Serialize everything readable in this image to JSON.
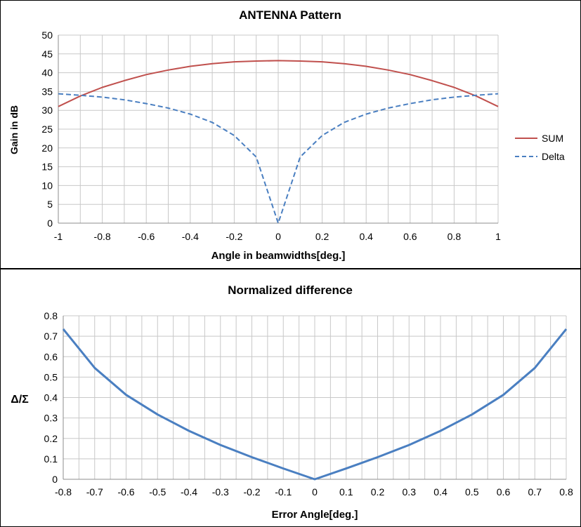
{
  "chart_data": [
    {
      "type": "line",
      "title": "ANTENNA Pattern",
      "xlabel": "Angle in beamwidths[deg.]",
      "ylabel": "Gain in dB",
      "xlim": [
        -1,
        1
      ],
      "ylim": [
        0,
        50
      ],
      "x_ticks": [
        "-1",
        "-0.8",
        "-0.6",
        "-0.4",
        "-0.2",
        "0",
        "0.2",
        "0.4",
        "0.6",
        "0.8",
        "1"
      ],
      "y_ticks": [
        "0",
        "5",
        "10",
        "15",
        "20",
        "25",
        "30",
        "35",
        "40",
        "45",
        "50"
      ],
      "grid": true,
      "legend_position": "right",
      "series": [
        {
          "name": "SUM",
          "color": "#c0504d",
          "style": "solid",
          "x": [
            -1,
            -0.9,
            -0.8,
            -0.7,
            -0.6,
            -0.5,
            -0.4,
            -0.3,
            -0.2,
            -0.1,
            0,
            0.1,
            0.2,
            0.3,
            0.4,
            0.5,
            0.6,
            0.7,
            0.8,
            0.9,
            1
          ],
          "y": [
            31.0,
            33.8,
            36.1,
            37.9,
            39.5,
            40.7,
            41.7,
            42.4,
            42.9,
            43.1,
            43.2,
            43.1,
            42.9,
            42.4,
            41.7,
            40.7,
            39.5,
            37.9,
            36.1,
            33.8,
            31.0
          ]
        },
        {
          "name": "Delta",
          "color": "#4a7fc1",
          "style": "dashed",
          "x": [
            -1,
            -0.9,
            -0.8,
            -0.7,
            -0.6,
            -0.5,
            -0.4,
            -0.3,
            -0.2,
            -0.1,
            0,
            0.1,
            0.2,
            0.3,
            0.4,
            0.5,
            0.6,
            0.7,
            0.8,
            0.9,
            1
          ],
          "y": [
            34.4,
            34.0,
            33.5,
            32.8,
            31.8,
            30.6,
            29.0,
            26.8,
            23.3,
            17.6,
            0,
            17.6,
            23.3,
            26.8,
            29.0,
            30.6,
            31.8,
            32.8,
            33.5,
            34.0,
            34.4
          ]
        }
      ]
    },
    {
      "type": "line",
      "title": "Normalized difference",
      "xlabel": "Error Angle[deg.]",
      "ylabel": "Δ/Σ",
      "xlim": [
        -0.8,
        0.8
      ],
      "ylim": [
        0,
        0.8
      ],
      "x_ticks": [
        "-0.8",
        "-0.7",
        "-0.6",
        "-0.5",
        "-0.4",
        "-0.3",
        "-0.2",
        "-0.1",
        "0",
        "0.1",
        "0.2",
        "0.3",
        "0.4",
        "0.5",
        "0.6",
        "0.7",
        "0.8"
      ],
      "y_ticks": [
        "0",
        "0.1",
        "0.2",
        "0.3",
        "0.4",
        "0.5",
        "0.6",
        "0.7",
        "0.8"
      ],
      "grid": true,
      "series": [
        {
          "color": "#4a7fc1",
          "style": "solid",
          "x": [
            -0.8,
            -0.7,
            -0.6,
            -0.5,
            -0.4,
            -0.3,
            -0.2,
            -0.1,
            0,
            0.1,
            0.2,
            0.3,
            0.4,
            0.5,
            0.6,
            0.7,
            0.8
          ],
          "y": [
            0.735,
            0.545,
            0.413,
            0.317,
            0.237,
            0.168,
            0.108,
            0.053,
            0,
            0.053,
            0.108,
            0.168,
            0.237,
            0.317,
            0.413,
            0.545,
            0.735
          ]
        }
      ]
    }
  ]
}
